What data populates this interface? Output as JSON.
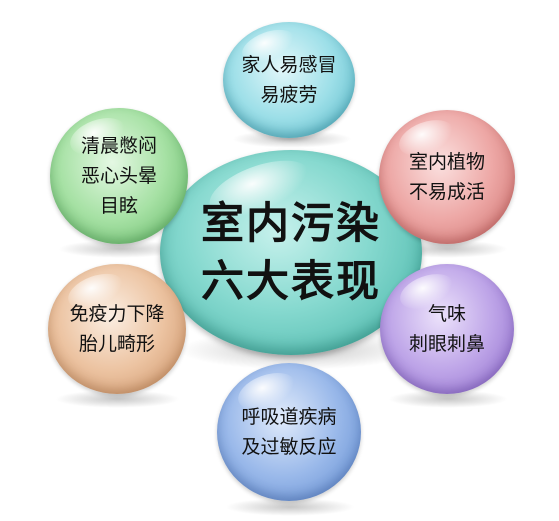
{
  "center": {
    "line1": "室内污染",
    "line2": "六大表现"
  },
  "bubbles": {
    "top": {
      "line1": "家人易感冒",
      "line2": "易疲劳"
    },
    "top_right": {
      "line1": "室内植物",
      "line2": "不易成活"
    },
    "bottom_right": {
      "line1": "气味",
      "line2": "刺眼刺鼻"
    },
    "bottom": {
      "line1": "呼吸道疾病",
      "line2": "及过敏反应"
    },
    "bottom_left": {
      "line1": "免疫力下降",
      "line2": "胎儿畸形"
    },
    "top_left": {
      "line1": "清晨憋闷",
      "line2": "恶心头晕",
      "line3": "目眩"
    }
  },
  "colors": {
    "center": "#7fd6cc",
    "top": "#8fd8e0",
    "top_right": "#e89a98",
    "bottom_right": "#b59ae2",
    "bottom": "#8cb0e6",
    "bottom_left": "#e6b896",
    "top_left": "#97d89a"
  }
}
